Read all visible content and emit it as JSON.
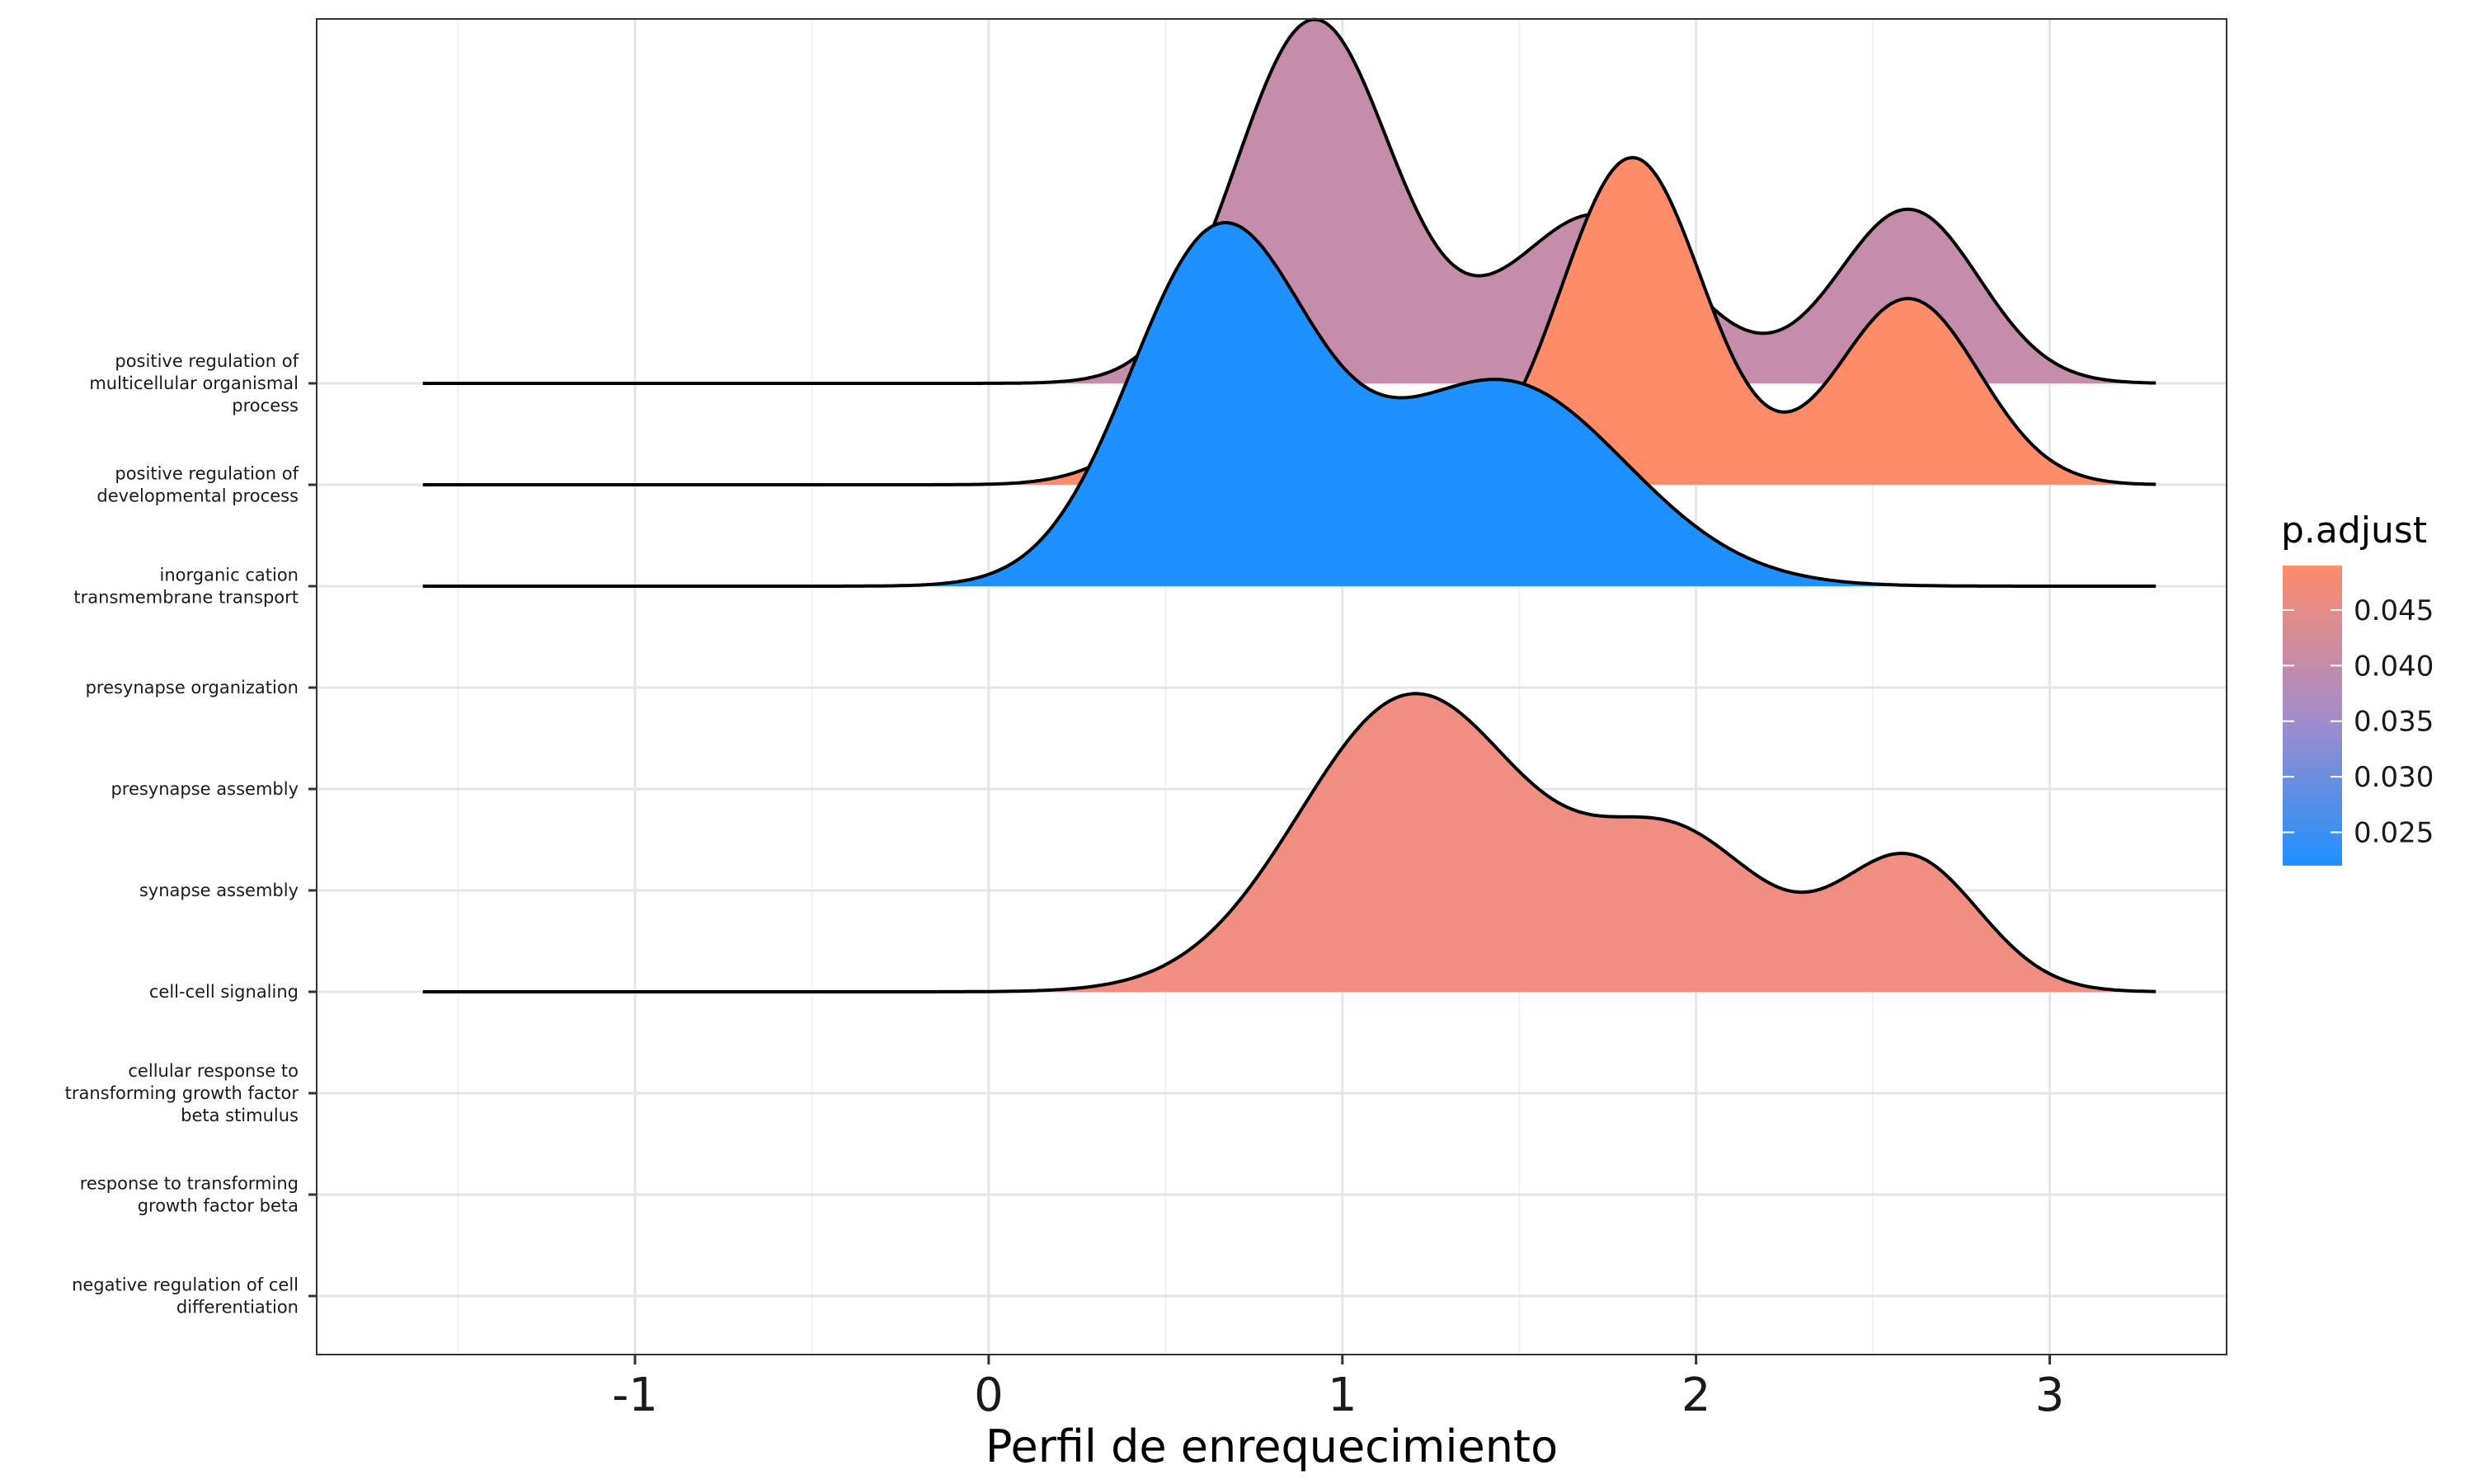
{
  "chart_data": {
    "type": "ridgeline",
    "xlabel": "Perfil de enrequecimiento",
    "xlim": [
      -1.9,
      3.5
    ],
    "xticks": [
      -1,
      0,
      1,
      2,
      3
    ],
    "x_tick_labels": [
      "-1",
      "0",
      "1",
      "2",
      "3"
    ],
    "x_range_of_curves": [
      -1.6,
      3.3
    ],
    "categories": [
      "positive regulation of\nmulticellular organismal\nprocess",
      "positive regulation of\ndevelopmental process",
      "inorganic cation\ntransmembrane transport",
      "presynapse organization",
      "presynapse assembly",
      "synapse assembly",
      "cell-cell signaling",
      "cellular response to\ntransforming growth factor\nbeta stimulus",
      "response to transforming\ngrowth factor beta",
      "negative regulation of cell\ndifferentiation"
    ],
    "ridges": [
      {
        "category_index": 0,
        "p_adjust": 0.036,
        "fill": "#C68DAB",
        "components": [
          {
            "mu": 0.92,
            "sigma": 0.22,
            "amp": 3.55
          },
          {
            "mu": 1.72,
            "sigma": 0.25,
            "amp": 1.65
          },
          {
            "mu": 2.6,
            "sigma": 0.2,
            "amp": 1.7
          }
        ]
      },
      {
        "category_index": 1,
        "p_adjust": 0.049,
        "fill": "#FF8C69",
        "components": [
          {
            "mu": 0.62,
            "sigma": 0.2,
            "amp": 0.7
          },
          {
            "mu": 1.82,
            "sigma": 0.2,
            "amp": 3.2
          },
          {
            "mu": 2.6,
            "sigma": 0.2,
            "amp": 1.82
          }
        ]
      },
      {
        "category_index": 2,
        "p_adjust": 0.022,
        "fill": "#1E90FF",
        "components": [
          {
            "mu": 0.65,
            "sigma": 0.25,
            "amp": 3.4
          },
          {
            "mu": 1.45,
            "sigma": 0.35,
            "amp": 2.0
          }
        ]
      },
      {
        "category_index": 6,
        "p_adjust": 0.045,
        "fill": "#F08E82",
        "components": [
          {
            "mu": 1.2,
            "sigma": 0.32,
            "amp": 2.9
          },
          {
            "mu": 1.95,
            "sigma": 0.25,
            "amp": 1.45
          },
          {
            "mu": 2.6,
            "sigma": 0.2,
            "amp": 1.3
          }
        ]
      }
    ],
    "legend": {
      "title": "p.adjust",
      "position": "right",
      "range": [
        0.022,
        0.049
      ],
      "ticks": [
        0.025,
        0.03,
        0.035,
        0.04,
        0.045
      ],
      "tick_labels": [
        "0.025",
        "0.030",
        "0.035",
        "0.040",
        "0.045"
      ],
      "colors": {
        "low": "#1E90FF",
        "mid": "#A58CC8",
        "high": "#FF8C69"
      }
    },
    "grid": true,
    "panel_border": true
  }
}
